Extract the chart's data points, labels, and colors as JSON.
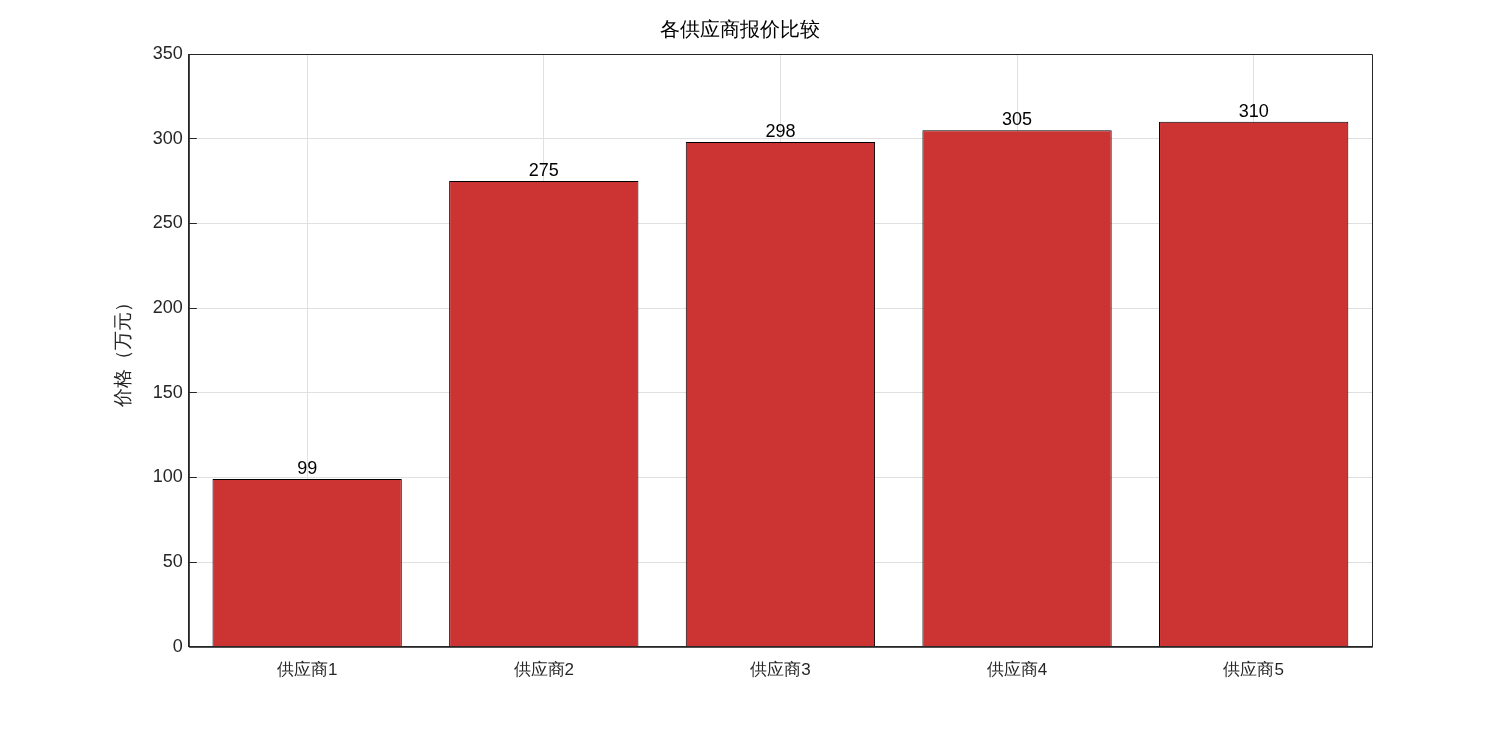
{
  "chart_data": {
    "type": "bar",
    "title": "各供应商报价比较",
    "ylabel": "价格（万元）",
    "categories": [
      "供应商1",
      "供应商2",
      "供应商3",
      "供应商4",
      "供应商5"
    ],
    "values": [
      99,
      275,
      298,
      305,
      310
    ],
    "color": "#cc3333",
    "ylim": [
      0,
      350
    ],
    "yticks": [
      0,
      50,
      100,
      150,
      200,
      250,
      300,
      350
    ],
    "grid": true,
    "data_labels": true,
    "legend": false
  }
}
